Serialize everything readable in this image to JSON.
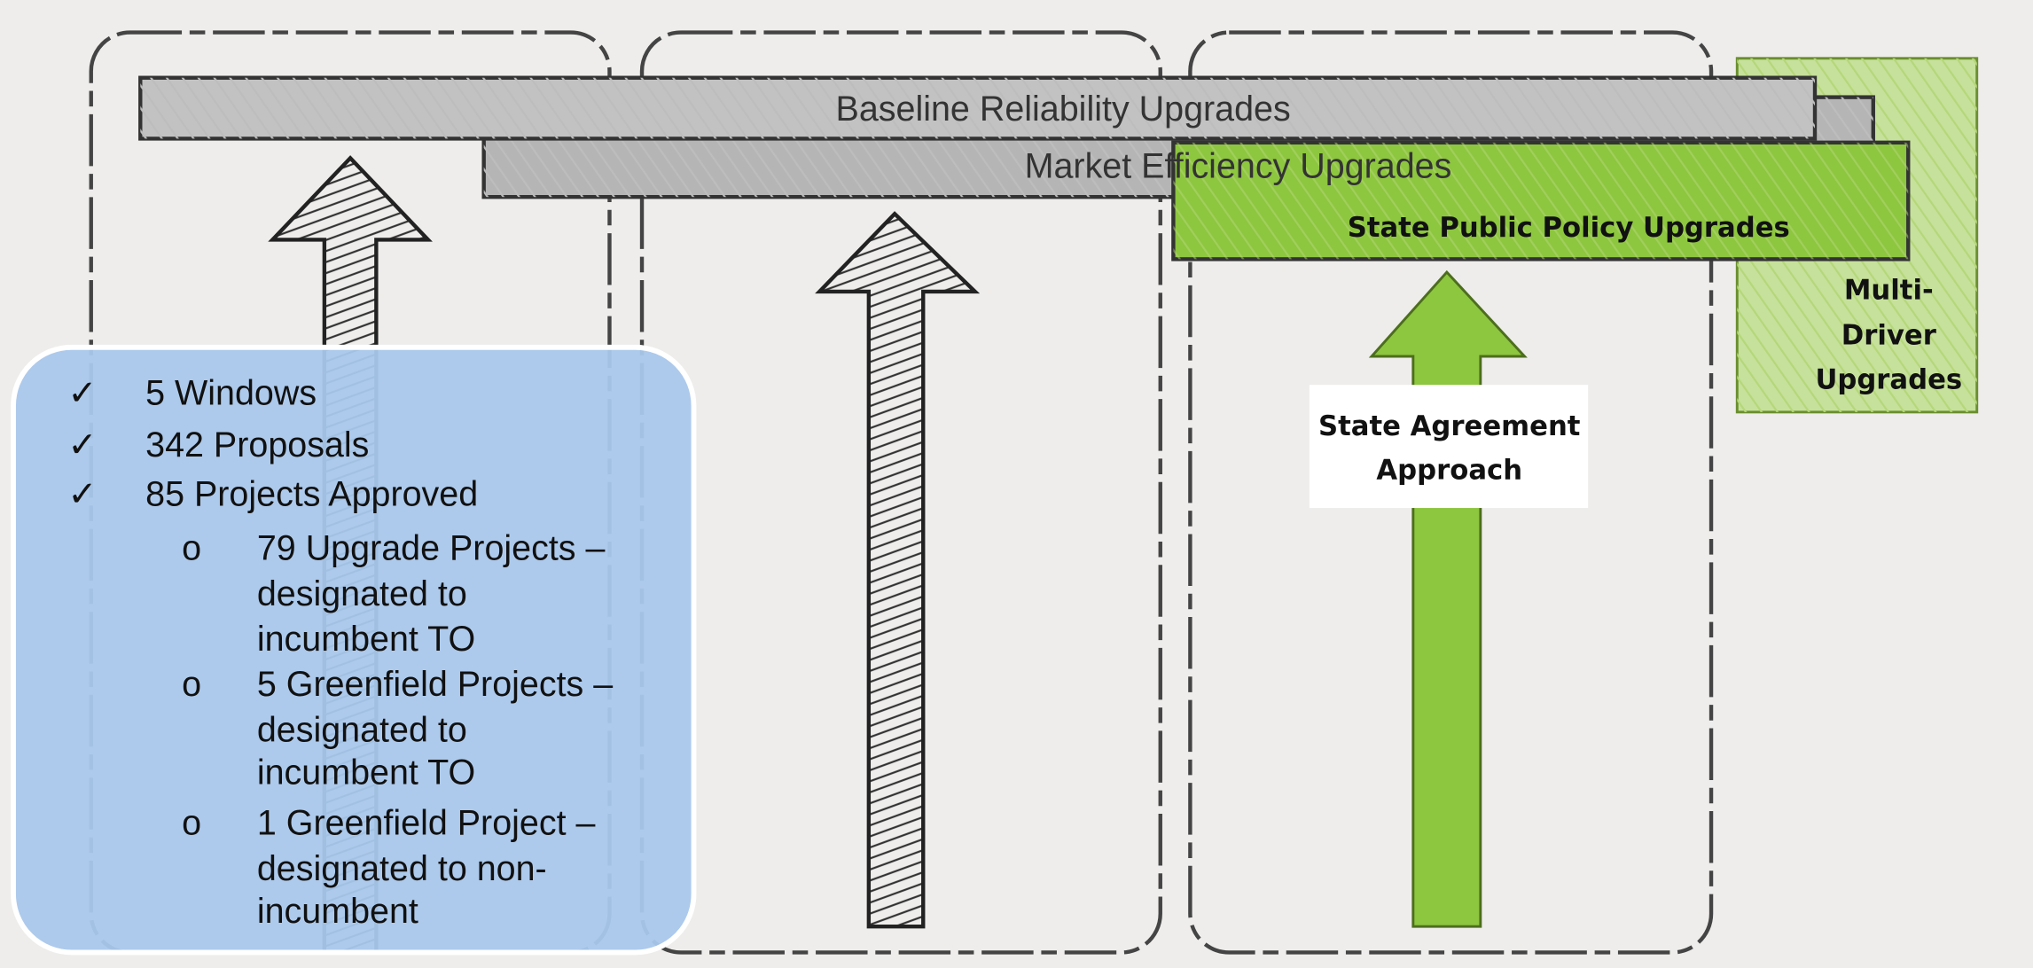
{
  "bars": [
    {
      "label": "Baseline Reliability Upgrades"
    },
    {
      "label": "Market Efficiency Upgrades"
    },
    {
      "label": "State Public Policy Upgrades"
    }
  ],
  "multi_driver": {
    "lines": [
      "Multi-",
      "Driver",
      "Upgrades"
    ]
  },
  "arrow_label": {
    "lines": [
      "State Agreement",
      "Approach"
    ]
  },
  "summary": {
    "items": [
      {
        "marker": "✓",
        "text": "5 Windows"
      },
      {
        "marker": "✓",
        "text": "342 Proposals"
      },
      {
        "marker": "✓",
        "text": "85 Projects Approved"
      }
    ],
    "sub_items": [
      {
        "marker": "o",
        "lines": [
          "79 Upgrade Projects –",
          "designated to",
          "incumbent TO"
        ]
      },
      {
        "marker": "o",
        "lines": [
          "5 Greenfield Projects –",
          "designated to",
          "incumbent TO"
        ]
      },
      {
        "marker": "o",
        "lines": [
          "1 Greenfield Project –",
          "designated to non-",
          "incumbent"
        ]
      }
    ]
  }
}
